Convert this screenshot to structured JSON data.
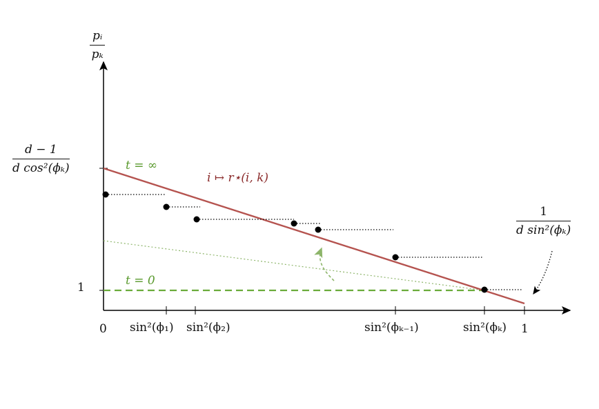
{
  "axes": {
    "y_label_num": "pᵢ",
    "y_label_den": "pₖ",
    "y_top_num": "d − 1",
    "y_top_den": "d cos²(ϕₖ)",
    "y_one": "1",
    "x_zero": "0",
    "x_one": "1",
    "x_ticks": [
      "sin²(ϕ₁)",
      "sin²(ϕ₂)",
      "sin²(ϕₖ₋₁)",
      "sin²(ϕₖ)"
    ]
  },
  "annotations": {
    "t_infinity": "t = ∞",
    "t_zero": "t = 0",
    "map_label": "i ↦ r⋆(i, k)",
    "side_num": "1",
    "side_den": "d sin²(ϕₖ)"
  },
  "colors": {
    "red_line": "#b5534f",
    "green_dashed": "#6aab3a",
    "green_dotted": "#8db56a",
    "points": "#000000"
  }
}
